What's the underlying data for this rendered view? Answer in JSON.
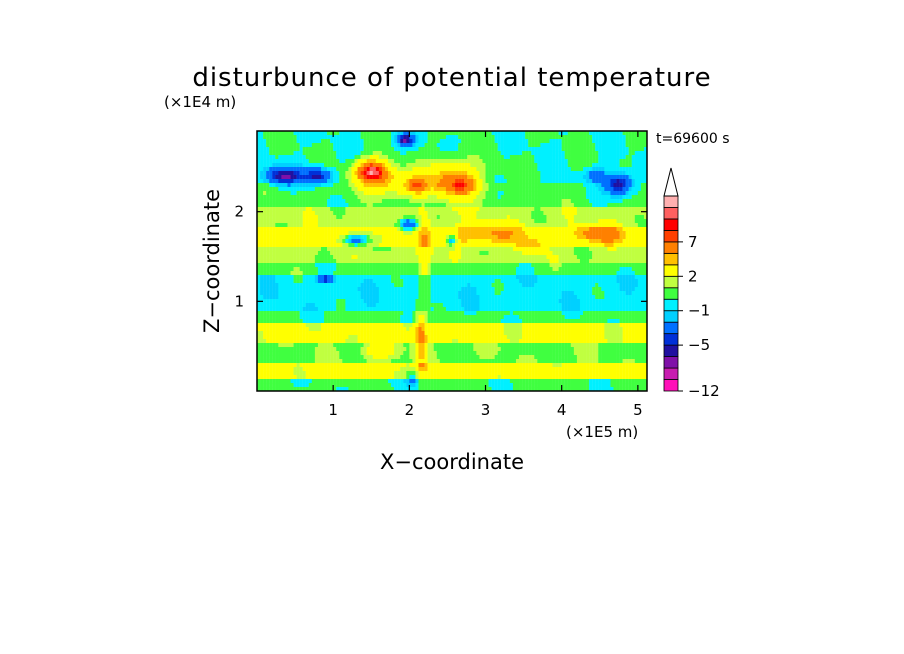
{
  "chart_data": {
    "type": "heatmap",
    "title": "disturbunce of potential temperature",
    "xlabel": "X−coordinate",
    "ylabel": "Z−coordinate",
    "x_unit": "(×1E5 m)",
    "y_unit": "(×1E4 m)",
    "time_label": "t=69600 s",
    "xlim": [
      0,
      5.12
    ],
    "ylim": [
      0,
      2.9
    ],
    "x_ticks": [
      {
        "value": 1,
        "label": "1"
      },
      {
        "value": 2,
        "label": "2"
      },
      {
        "value": 3,
        "label": "3"
      },
      {
        "value": 4,
        "label": "4"
      },
      {
        "value": 5,
        "label": "5"
      }
    ],
    "y_ticks": [
      {
        "value": 1,
        "label": "1"
      },
      {
        "value": 2,
        "label": "2"
      }
    ],
    "colorbar": {
      "levels": [
        -12,
        -10,
        -8,
        -6,
        -5,
        -4,
        -2,
        -1,
        0,
        1,
        2,
        4,
        5,
        7,
        8,
        9,
        10
      ],
      "colors": [
        "#ff10b8",
        "#c81cb0",
        "#8010a8",
        "#2010a0",
        "#0030d8",
        "#0070ff",
        "#00d0ff",
        "#00f0ff",
        "#40ff40",
        "#c0ff40",
        "#ffff00",
        "#ffc000",
        "#ff8000",
        "#ff4000",
        "#ff0000",
        "#ff6060",
        "#ffb0b0"
      ],
      "tick_labels": [
        {
          "value": -12,
          "label": "−12"
        },
        {
          "value": -5,
          "label": "−5"
        },
        {
          "value": -1,
          "label": "−1"
        },
        {
          "value": 2,
          "label": "2"
        },
        {
          "value": 7,
          "label": "7"
        }
      ],
      "extend": "max"
    },
    "field": {
      "background": 0.2,
      "layers": [
        {
          "z0": 0.0,
          "z1": 0.12,
          "value": 0.3
        },
        {
          "z0": 0.12,
          "z1": 0.3,
          "value": 2.6
        },
        {
          "z0": 0.3,
          "z1": 0.55,
          "value": 0.8
        },
        {
          "z0": 0.55,
          "z1": 0.75,
          "value": 2.4
        },
        {
          "z0": 0.75,
          "z1": 0.9,
          "value": 0.3
        },
        {
          "z0": 0.9,
          "z1": 1.28,
          "value": -0.6
        },
        {
          "z0": 1.28,
          "z1": 1.45,
          "value": 0.4
        },
        {
          "z0": 1.45,
          "z1": 1.62,
          "value": 1.4
        },
        {
          "z0": 1.62,
          "z1": 1.85,
          "value": 2.8
        },
        {
          "z0": 1.85,
          "z1": 2.05,
          "value": 1.5
        },
        {
          "z0": 2.05,
          "z1": 2.3,
          "value": 0.4
        },
        {
          "z0": 2.3,
          "z1": 2.9,
          "value": 0.0
        }
      ],
      "blobs": [
        {
          "x": 1.5,
          "z": 2.45,
          "sx": 0.22,
          "sz": 0.13,
          "value": 9.0
        },
        {
          "x": 1.9,
          "z": 2.33,
          "sx": 0.45,
          "sz": 0.15,
          "value": 4.0
        },
        {
          "x": 2.1,
          "z": 2.28,
          "sx": 0.1,
          "sz": 0.08,
          "value": 3.5
        },
        {
          "x": 2.6,
          "z": 2.35,
          "sx": 0.35,
          "sz": 0.22,
          "value": 5.0
        },
        {
          "x": 2.7,
          "z": 2.3,
          "sx": 0.18,
          "sz": 0.1,
          "value": 3.0
        },
        {
          "x": 3.0,
          "z": 1.75,
          "sx": 0.5,
          "sz": 0.12,
          "value": 2.5
        },
        {
          "x": 4.5,
          "z": 1.75,
          "sx": 0.35,
          "sz": 0.1,
          "value": 3.5
        },
        {
          "x": 0.35,
          "z": 2.4,
          "sx": 0.25,
          "sz": 0.1,
          "value": -6.0
        },
        {
          "x": 0.8,
          "z": 2.4,
          "sx": 0.18,
          "sz": 0.09,
          "value": -5.5
        },
        {
          "x": 4.75,
          "z": 2.3,
          "sx": 0.18,
          "sz": 0.12,
          "value": -6.5
        },
        {
          "x": 4.45,
          "z": 2.4,
          "sx": 0.15,
          "sz": 0.08,
          "value": -3.0
        },
        {
          "x": 1.3,
          "z": 1.68,
          "sx": 0.18,
          "sz": 0.07,
          "value": -6.0
        },
        {
          "x": 2.0,
          "z": 1.85,
          "sx": 0.12,
          "sz": 0.08,
          "value": -6.0
        },
        {
          "x": 1.95,
          "z": 2.8,
          "sx": 0.12,
          "sz": 0.07,
          "value": -6.0
        },
        {
          "x": 2.55,
          "z": 1.68,
          "sx": 0.07,
          "sz": 0.06,
          "value": -6.0
        },
        {
          "x": 2.2,
          "z": 1.5,
          "sx": 0.09,
          "sz": 0.4,
          "value": 3.0
        },
        {
          "x": 2.15,
          "z": 0.55,
          "sx": 0.08,
          "sz": 0.35,
          "value": 4.0
        },
        {
          "x": 2.05,
          "z": 0.15,
          "sx": 0.1,
          "sz": 0.12,
          "value": -3.0
        },
        {
          "x": 1.6,
          "z": 0.45,
          "sx": 0.22,
          "sz": 0.1,
          "value": 2.5
        },
        {
          "x": 0.9,
          "z": 1.25,
          "sx": 0.08,
          "sz": 0.04,
          "value": -5.0
        },
        {
          "x": 3.6,
          "z": 1.6,
          "sx": 0.15,
          "sz": 0.1,
          "value": 2.0
        }
      ]
    }
  }
}
